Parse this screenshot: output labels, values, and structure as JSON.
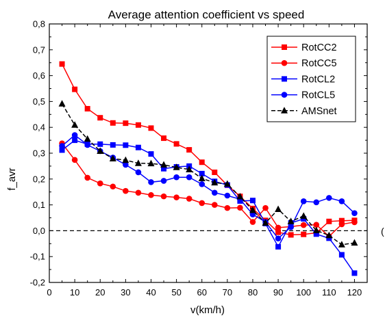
{
  "chart_data": {
    "type": "line",
    "title": "Average attention coefficient vs speed",
    "xlabel": "v(km/h)",
    "ylabel": "f_avr",
    "xlim": [
      0,
      125
    ],
    "ylim": [
      -0.2,
      0.8
    ],
    "x_ticks": [
      "0",
      "10",
      "20",
      "30",
      "40",
      "50",
      "60",
      "70",
      "80",
      "90",
      "100",
      "110",
      "120"
    ],
    "y_ticks": [
      "-0,2",
      "-0,1",
      "0,0",
      "0,1",
      "0,2",
      "0,3",
      "0,4",
      "0,5",
      "0,6",
      "0,7",
      "0,8"
    ],
    "x_tick_values": [
      0,
      10,
      20,
      30,
      40,
      50,
      60,
      70,
      80,
      90,
      100,
      110,
      120
    ],
    "y_tick_values": [
      -0.2,
      -0.1,
      0.0,
      0.1,
      0.2,
      0.3,
      0.4,
      0.5,
      0.6,
      0.7,
      0.8
    ],
    "reference_line": {
      "y": 0.0,
      "style": "dashed"
    },
    "x": [
      5,
      10,
      15,
      20,
      25,
      30,
      35,
      40,
      45,
      50,
      55,
      60,
      65,
      70,
      75,
      80,
      85,
      90,
      95,
      100,
      105,
      110,
      115,
      120
    ],
    "legend_position": "top-right",
    "series": [
      {
        "name": "RotCC2",
        "color": "#ff0000",
        "marker": "square",
        "dashed": false,
        "values": [
          0.645,
          0.547,
          0.472,
          0.437,
          0.417,
          0.416,
          0.409,
          0.397,
          0.358,
          0.336,
          0.313,
          0.265,
          0.226,
          0.176,
          0.133,
          0.086,
          0.04,
          -0.006,
          -0.016,
          -0.014,
          -0.008,
          0.036,
          0.039,
          0.04
        ]
      },
      {
        "name": "RotCC5",
        "color": "#ff0000",
        "marker": "circle",
        "dashed": false,
        "values": [
          0.338,
          0.274,
          0.205,
          0.183,
          0.171,
          0.154,
          0.147,
          0.138,
          0.133,
          0.129,
          0.124,
          0.107,
          0.1,
          0.088,
          0.089,
          0.034,
          0.088,
          0.012,
          0.016,
          0.022,
          0.023,
          -0.022,
          0.025,
          0.033
        ]
      },
      {
        "name": "RotCL2",
        "color": "#0000ff",
        "marker": "square",
        "dashed": false,
        "values": [
          0.312,
          0.35,
          0.335,
          0.335,
          0.332,
          0.331,
          0.322,
          0.297,
          0.24,
          0.247,
          0.25,
          0.221,
          0.191,
          0.177,
          0.115,
          0.117,
          0.028,
          -0.062,
          0.03,
          0.046,
          -0.013,
          -0.029,
          -0.093,
          -0.164
        ]
      },
      {
        "name": "RotCL5",
        "color": "#0000ff",
        "marker": "circle",
        "dashed": false,
        "values": [
          0.328,
          0.37,
          0.332,
          0.308,
          0.283,
          0.255,
          0.226,
          0.188,
          0.193,
          0.207,
          0.207,
          0.18,
          0.147,
          0.136,
          0.122,
          0.063,
          0.034,
          -0.03,
          0.014,
          0.114,
          0.11,
          0.127,
          0.114,
          0.068
        ]
      },
      {
        "name": "AMSnet",
        "color": "#000000",
        "marker": "triangle",
        "dashed": true,
        "values": [
          0.491,
          0.409,
          0.355,
          0.308,
          0.279,
          0.273,
          0.261,
          0.26,
          0.255,
          0.245,
          0.237,
          0.202,
          0.186,
          0.181,
          0.132,
          0.079,
          0.03,
          0.083,
          0.036,
          0.057,
          0.001,
          -0.018,
          -0.054,
          -0.047
        ]
      }
    ]
  },
  "stray_glyph": "("
}
